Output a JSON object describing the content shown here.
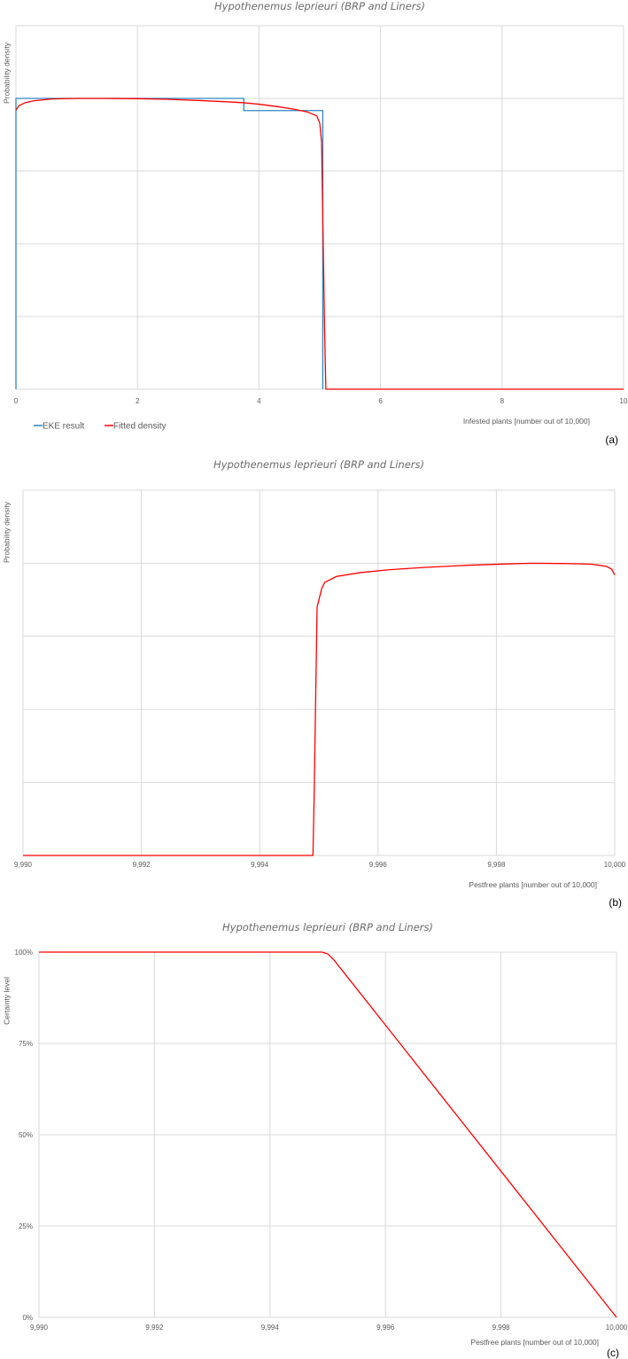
{
  "chart_data": [
    {
      "type": "line",
      "title": "Hypothenemus leprieuri (BRP and Liners)",
      "xlabel": "Infested plants [number out of 10,000]",
      "ylabel": "Probability density",
      "panel_label": "(a)",
      "xlim": [
        0,
        10
      ],
      "x_ticks": [
        "0",
        "2",
        "4",
        "6",
        "8",
        "10"
      ],
      "y_ticks_shown": false,
      "grid": true,
      "legend": {
        "position": "bottom-left"
      },
      "series": [
        {
          "name": "EKE result",
          "color": "#2e86c1",
          "style": "step",
          "x": [
            0,
            0,
            3.75,
            3.75,
            5.05,
            5.05
          ],
          "y": [
            0,
            1.0,
            1.0,
            0.958,
            0.958,
            0
          ]
        },
        {
          "name": "Fitted density",
          "color": "#ff0000",
          "x": [
            0,
            0.05,
            0.15,
            0.3,
            0.6,
            1.0,
            1.5,
            2.0,
            2.5,
            3.0,
            3.5,
            3.75,
            4.0,
            4.3,
            4.6,
            4.8,
            4.95,
            5.0,
            5.03,
            5.08,
            5.1,
            6,
            8,
            10
          ],
          "y": [
            0.96,
            0.975,
            0.985,
            0.992,
            0.998,
            1.0,
            1.0,
            0.999,
            0.997,
            0.993,
            0.988,
            0.985,
            0.98,
            0.972,
            0.962,
            0.953,
            0.94,
            0.915,
            0.85,
            0.2,
            0,
            0,
            0,
            0
          ]
        }
      ]
    },
    {
      "type": "line",
      "title": "Hypothenemus leprieuri (BRP and Liners)",
      "xlabel": "Pestfree plants [number out of 10,000]",
      "ylabel": "Probability density",
      "panel_label": "(b)",
      "xlim": [
        9990,
        10000
      ],
      "x_ticks": [
        "9,990",
        "9,992",
        "9,994",
        "9,996",
        "9,998",
        "10,000"
      ],
      "y_ticks_shown": false,
      "grid": true,
      "series": [
        {
          "name": "",
          "color": "#ff0000",
          "x": [
            9990,
            9994,
            9994.9,
            9994.92,
            9994.97,
            9995.05,
            9995.1,
            9995.3,
            9995.7,
            9996.2,
            9996.8,
            9997.5,
            9998.2,
            9998.6,
            9999.2,
            9999.6,
            9999.85,
            9999.95,
            10000
          ],
          "y": [
            0,
            0,
            0,
            0.2,
            0.85,
            0.915,
            0.935,
            0.955,
            0.968,
            0.978,
            0.986,
            0.993,
            0.998,
            1.0,
            0.999,
            0.997,
            0.99,
            0.98,
            0.96
          ]
        }
      ]
    },
    {
      "type": "line",
      "title": "Hypothenemus leprieuri (BRP and Liners)",
      "xlabel": "Pestfree plants [number out of 10,000]",
      "ylabel": "Certainty level",
      "panel_label": "(c)",
      "xlim": [
        9990,
        10000
      ],
      "ylim": [
        0,
        100
      ],
      "x_ticks": [
        "9,990",
        "9,992",
        "9,994",
        "9,996",
        "9,998",
        "10,000"
      ],
      "y_ticks": [
        "0%",
        "25%",
        "50%",
        "75%",
        "100%"
      ],
      "grid": true,
      "series": [
        {
          "name": "",
          "color": "#ff0000",
          "x": [
            9990,
            9994.9,
            9995.0,
            9995.1,
            9996,
            9997,
            9998,
            9999,
            10000
          ],
          "y": [
            100,
            100,
            99.5,
            98,
            80,
            60,
            40,
            20,
            0
          ]
        }
      ]
    }
  ]
}
